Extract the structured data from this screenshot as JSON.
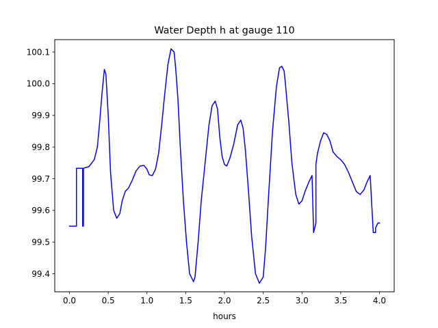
{
  "chart_data": {
    "type": "line",
    "title": "Water Depth h at gauge 110",
    "xlabel": "hours",
    "ylabel": "",
    "xlim": [
      -0.19,
      4.19
    ],
    "ylim": [
      99.343,
      100.139
    ],
    "x_ticks": [
      0.0,
      0.5,
      1.0,
      1.5,
      2.0,
      2.5,
      3.0,
      3.5,
      4.0
    ],
    "x_tick_labels": [
      "0.0",
      "0.5",
      "1.0",
      "1.5",
      "2.0",
      "2.5",
      "3.0",
      "3.5",
      "4.0"
    ],
    "y_ticks": [
      99.4,
      99.5,
      99.6,
      99.7,
      99.8,
      99.9,
      100.0,
      100.1
    ],
    "y_tick_labels": [
      "99.4",
      "99.5",
      "99.6",
      "99.7",
      "99.8",
      "99.9",
      "100.0",
      "100.1"
    ],
    "grid": false,
    "series": [
      {
        "color": "#0000ff",
        "x": [
          0.0,
          0.09,
          0.09,
          0.17,
          0.17,
          0.18,
          0.18,
          0.25,
          0.32,
          0.36,
          0.39,
          0.42,
          0.45,
          0.47,
          0.5,
          0.53,
          0.57,
          0.61,
          0.65,
          0.68,
          0.72,
          0.76,
          0.81,
          0.86,
          0.91,
          0.96,
          1.0,
          1.03,
          1.07,
          1.11,
          1.15,
          1.19,
          1.23,
          1.27,
          1.31,
          1.35,
          1.37,
          1.4,
          1.43,
          1.47,
          1.51,
          1.55,
          1.6,
          1.62,
          1.66,
          1.7,
          1.75,
          1.8,
          1.84,
          1.88,
          1.91,
          1.94,
          1.97,
          2.0,
          2.03,
          2.07,
          2.12,
          2.17,
          2.21,
          2.24,
          2.27,
          2.31,
          2.35,
          2.4,
          2.45,
          2.5,
          2.53,
          2.57,
          2.62,
          2.67,
          2.71,
          2.74,
          2.77,
          2.79,
          2.83,
          2.87,
          2.92,
          2.96,
          3.0,
          3.04,
          3.09,
          3.13,
          3.15,
          3.15,
          3.18,
          3.18,
          3.2,
          3.24,
          3.28,
          3.32,
          3.36,
          3.4,
          3.45,
          3.5,
          3.55,
          3.6,
          3.65,
          3.7,
          3.75,
          3.8,
          3.84,
          3.88,
          3.92,
          3.95,
          3.95,
          3.98,
          4.0
        ],
        "y": [
          99.55,
          99.55,
          99.733,
          99.733,
          99.55,
          99.55,
          99.733,
          99.738,
          99.76,
          99.8,
          99.88,
          99.97,
          100.045,
          100.03,
          99.9,
          99.72,
          99.6,
          99.575,
          99.59,
          99.63,
          99.66,
          99.67,
          99.695,
          99.725,
          99.74,
          99.742,
          99.73,
          99.712,
          99.71,
          99.73,
          99.78,
          99.87,
          99.97,
          100.06,
          100.11,
          100.1,
          100.05,
          99.95,
          99.8,
          99.63,
          99.5,
          99.4,
          99.375,
          99.39,
          99.5,
          99.63,
          99.75,
          99.87,
          99.93,
          99.945,
          99.92,
          99.83,
          99.77,
          99.745,
          99.74,
          99.765,
          99.81,
          99.87,
          99.885,
          99.86,
          99.79,
          99.66,
          99.52,
          99.4,
          99.37,
          99.39,
          99.48,
          99.65,
          99.85,
          99.99,
          100.05,
          100.055,
          100.04,
          99.99,
          99.88,
          99.75,
          99.65,
          99.62,
          99.63,
          99.66,
          99.69,
          99.71,
          99.53,
          99.53,
          99.56,
          99.745,
          99.78,
          99.82,
          99.845,
          99.84,
          99.82,
          99.785,
          99.77,
          99.76,
          99.745,
          99.72,
          99.69,
          99.66,
          99.65,
          99.665,
          99.69,
          99.71,
          99.53,
          99.53,
          99.545,
          99.56,
          99.56
        ]
      }
    ]
  }
}
